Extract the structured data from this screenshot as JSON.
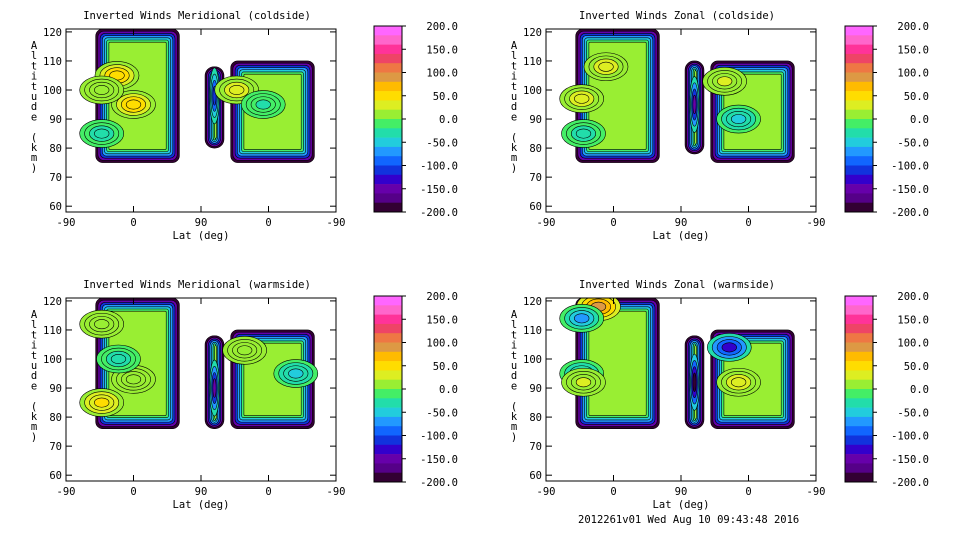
{
  "colorbar": {
    "ticks": [
      "200.0",
      "150.0",
      "100.0",
      "50.0",
      "0.0",
      "-50.0",
      "-100.0",
      "-150.0",
      "-200.0"
    ],
    "colors": [
      "#ff66ff",
      "#ff66cc",
      "#ff3399",
      "#ee4466",
      "#ee7744",
      "#dd9944",
      "#ffbb00",
      "#ffdd00",
      "#ddee22",
      "#99ee33",
      "#44ee66",
      "#22ddaa",
      "#22ccdd",
      "#2299ff",
      "#1166ff",
      "#1133dd",
      "#3300cc",
      "#6600aa",
      "#550088",
      "#330033"
    ]
  },
  "chart_data": [
    {
      "type": "heatmap",
      "title": "Inverted Winds Meridional (coldside)",
      "xlabel": "Lat (deg)",
      "ylabel": "Altitude (km)",
      "x_ticks": [
        "-90",
        "0",
        "90",
        "0",
        "-90"
      ],
      "y_ticks": [
        "120",
        "110",
        "100",
        "90",
        "80",
        "70",
        "60"
      ],
      "ylim": [
        58,
        121
      ],
      "clim": [
        -200,
        200
      ],
      "regions": [
        {
          "lat_path": [
            -90,
            0
          ],
          "alt_range": [
            75,
            121
          ],
          "features": [
            {
              "lat": -22,
              "alt": 105,
              "value": 60
            },
            {
              "lat": 0,
              "alt": 95,
              "value": 60
            },
            {
              "lat": -55,
              "alt": 100,
              "value": 10
            },
            {
              "lat": -60,
              "alt": 85,
              "value": -30
            }
          ]
        },
        {
          "lat_path": [
            30,
            0
          ],
          "alt_range": [
            80,
            108
          ],
          "features": [
            {
              "lat": 35,
              "alt": 98,
              "value": -110
            }
          ]
        },
        {
          "lat_path": [
            0,
            -90
          ],
          "alt_range": [
            75,
            110
          ],
          "features": [
            {
              "lat": 10,
              "alt": 100,
              "value": 30
            },
            {
              "lat": -35,
              "alt": 95,
              "value": -20
            }
          ]
        }
      ]
    },
    {
      "type": "heatmap",
      "title": "Inverted Winds Zonal (coldside)",
      "xlabel": "Lat (deg)",
      "ylabel": "Altitude (km)",
      "x_ticks": [
        "-90",
        "0",
        "90",
        "0",
        "-90"
      ],
      "y_ticks": [
        "120",
        "110",
        "100",
        "90",
        "80",
        "70",
        "60"
      ],
      "ylim": [
        58,
        121
      ],
      "clim": [
        -200,
        200
      ],
      "regions": [
        {
          "lat_path": [
            -90,
            0
          ],
          "alt_range": [
            75,
            121
          ],
          "features": [
            {
              "lat": -10,
              "alt": 108,
              "value": 35
            },
            {
              "lat": -55,
              "alt": 97,
              "value": 35
            },
            {
              "lat": -40,
              "alt": 85,
              "value": -30
            }
          ]
        },
        {
          "lat_path": [
            30,
            0
          ],
          "alt_range": [
            78,
            110
          ],
          "features": [
            {
              "lat": 30,
              "alt": 95,
              "value": -140
            }
          ]
        },
        {
          "lat_path": [
            0,
            -90
          ],
          "alt_range": [
            75,
            110
          ],
          "features": [
            {
              "lat": -15,
              "alt": 103,
              "value": 25
            },
            {
              "lat": -30,
              "alt": 90,
              "value": -40
            }
          ]
        }
      ]
    },
    {
      "type": "heatmap",
      "title": "Inverted Winds Meridional (warmside)",
      "xlabel": "Lat (deg)",
      "ylabel": "Altitude (km)",
      "x_ticks": [
        "-90",
        "0",
        "90",
        "0",
        "-90"
      ],
      "y_ticks": [
        "120",
        "110",
        "100",
        "90",
        "80",
        "70",
        "60"
      ],
      "ylim": [
        58,
        121
      ],
      "clim": [
        -200,
        200
      ],
      "regions": [
        {
          "lat_path": [
            -90,
            0
          ],
          "alt_range": [
            76,
            121
          ],
          "features": [
            {
              "lat": -65,
              "alt": 85,
              "value": 50
            },
            {
              "lat": -60,
              "alt": 112,
              "value": 20
            },
            {
              "lat": 0,
              "alt": 93,
              "value": 20
            },
            {
              "lat": -20,
              "alt": 100,
              "value": -30
            }
          ]
        },
        {
          "lat_path": [
            30,
            0
          ],
          "alt_range": [
            76,
            108
          ],
          "features": [
            {
              "lat": 40,
              "alt": 90,
              "value": -150
            }
          ]
        },
        {
          "lat_path": [
            0,
            -90
          ],
          "alt_range": [
            76,
            110
          ],
          "features": [
            {
              "lat": -15,
              "alt": 103,
              "value": 10
            },
            {
              "lat": -70,
              "alt": 95,
              "value": -40
            }
          ]
        }
      ]
    },
    {
      "type": "heatmap",
      "title": "Inverted Winds Zonal (warmside)",
      "xlabel": "Lat (deg)",
      "ylabel": "Altitude (km)",
      "x_ticks": [
        "-90",
        "0",
        "90",
        "0",
        "-90"
      ],
      "y_ticks": [
        "120",
        "110",
        "100",
        "90",
        "80",
        "70",
        "60"
      ],
      "ylim": [
        58,
        121
      ],
      "clim": [
        -200,
        200
      ],
      "regions": [
        {
          "lat_path": [
            -90,
            0
          ],
          "alt_range": [
            76,
            121
          ],
          "features": [
            {
              "lat": -20,
              "alt": 118,
              "value": 90
            },
            {
              "lat": -60,
              "alt": 114,
              "value": -60
            },
            {
              "lat": -65,
              "alt": 95,
              "value": -50
            },
            {
              "lat": -40,
              "alt": 92,
              "value": 25
            }
          ]
        },
        {
          "lat_path": [
            30,
            0
          ],
          "alt_range": [
            76,
            108
          ],
          "features": [
            {
              "lat": 35,
              "alt": 92,
              "value": -180
            }
          ]
        },
        {
          "lat_path": [
            0,
            -90
          ],
          "alt_range": [
            76,
            110
          ],
          "features": [
            {
              "lat": -30,
              "alt": 92,
              "value": 40
            },
            {
              "lat": -20,
              "alt": 104,
              "value": -120
            }
          ]
        }
      ]
    }
  ],
  "footer": "2012261v01 Wed Aug 10 09:43:48 2016"
}
